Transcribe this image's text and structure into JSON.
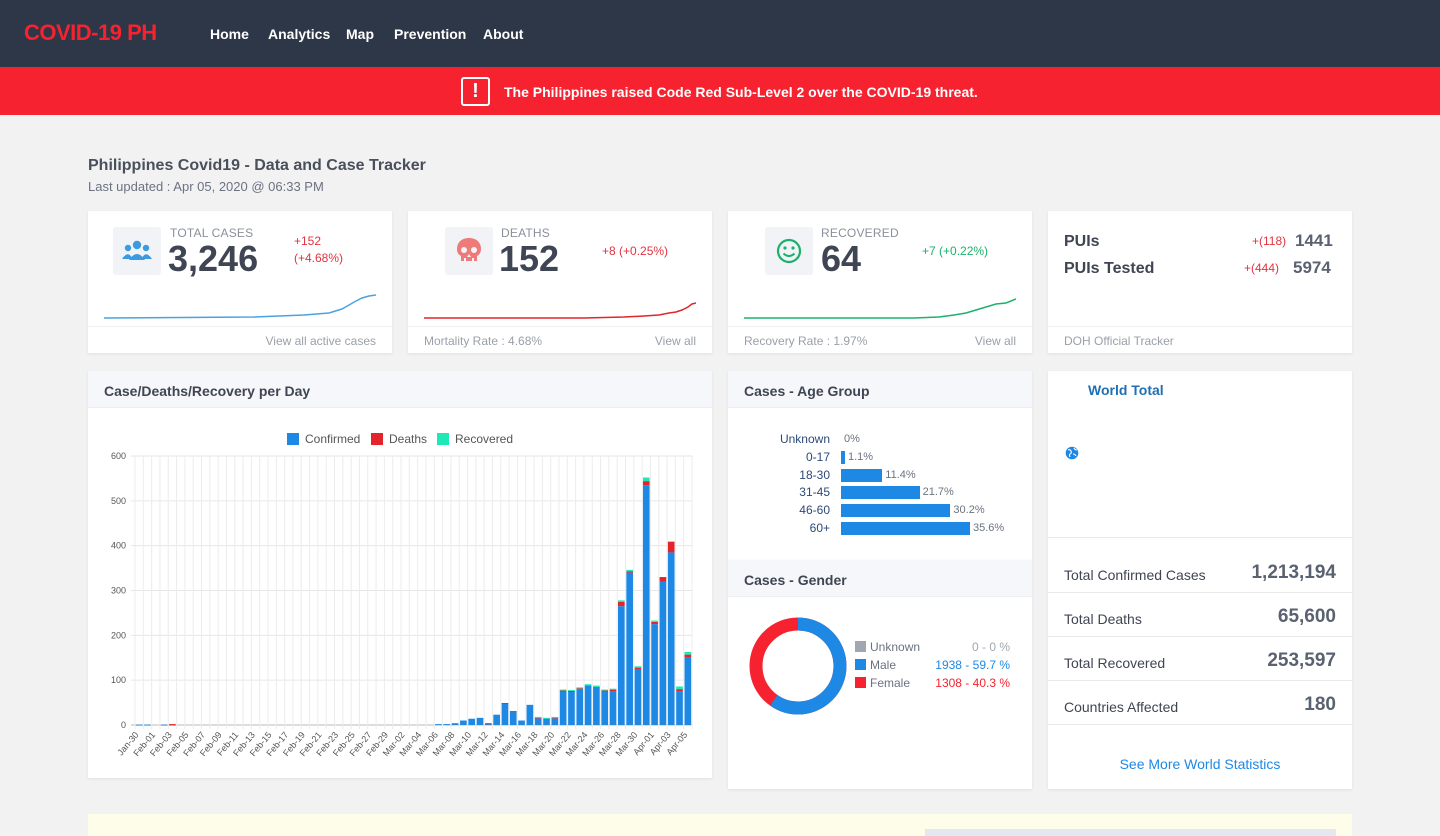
{
  "nav": {
    "brand": "COVID-19 PH",
    "links": [
      "Home",
      "Analytics",
      "Map",
      "Prevention",
      "About"
    ]
  },
  "alert": {
    "icon": "exclamation-icon",
    "text": "The Philippines raised Code Red Sub-Level 2 over the COVID-19 threat."
  },
  "header": {
    "title": "Philippines Covid19 - Data and Case Tracker",
    "updated": "Last updated : Apr 05, 2020 @ 06:33 PM"
  },
  "stats": {
    "total": {
      "label": "TOTAL CASES",
      "value": "3,246",
      "delta": "+152",
      "delta_pct": "(+4.68%)",
      "icon": "users-icon",
      "footer_right": "View all active cases",
      "color": "#4aa3e0"
    },
    "deaths": {
      "label": "DEATHS",
      "value": "152",
      "delta": "+8 (+0.25%)",
      "icon": "skull-icon",
      "footer_left": "Mortality Rate : 4.68%",
      "footer_right": "View all",
      "color": "#e3242b"
    },
    "recovered": {
      "label": "RECOVERED",
      "value": "64",
      "delta": "+7 (+0.22%)",
      "icon": "smile-icon",
      "footer_left": "Recovery Rate : 1.97%",
      "footer_right": "View all",
      "color": "#1ab26b"
    }
  },
  "puis": {
    "pui_label": "PUIs",
    "pui_delta": "+(118)",
    "pui_value": "1441",
    "tested_label": "PUIs Tested",
    "tested_delta": "+(444)",
    "tested_value": "5974",
    "footer": "DOH Official Tracker"
  },
  "daily": {
    "title": "Case/Deaths/Recovery per Day",
    "legend": [
      "Confirmed",
      "Deaths",
      "Recovered"
    ],
    "colors": [
      "#1e88e5",
      "#e3242b",
      "#1de9b6"
    ]
  },
  "chart_data": {
    "type": "bar",
    "stacked": true,
    "ylim": [
      0,
      600
    ],
    "yticks": [
      0,
      100,
      200,
      300,
      400,
      500,
      600
    ],
    "grid": true,
    "legend_position": "top",
    "categories": [
      "Jan-30",
      "Jan-31",
      "Feb-01",
      "Feb-02",
      "Feb-03",
      "Feb-04",
      "Feb-05",
      "Feb-06",
      "Feb-07",
      "Feb-08",
      "Feb-09",
      "Feb-10",
      "Feb-11",
      "Feb-12",
      "Feb-13",
      "Feb-14",
      "Feb-15",
      "Feb-16",
      "Feb-17",
      "Feb-18",
      "Feb-19",
      "Feb-20",
      "Feb-21",
      "Feb-22",
      "Feb-23",
      "Feb-24",
      "Feb-25",
      "Feb-26",
      "Feb-27",
      "Feb-28",
      "Feb-29",
      "Mar-01",
      "Mar-02",
      "Mar-03",
      "Mar-04",
      "Mar-05",
      "Mar-06",
      "Mar-07",
      "Mar-08",
      "Mar-09",
      "Mar-10",
      "Mar-11",
      "Mar-12",
      "Mar-13",
      "Mar-14",
      "Mar-15",
      "Mar-16",
      "Mar-17",
      "Mar-18",
      "Mar-19",
      "Mar-20",
      "Mar-21",
      "Mar-22",
      "Mar-23",
      "Mar-24",
      "Mar-25",
      "Mar-26",
      "Mar-27",
      "Mar-28",
      "Mar-29",
      "Mar-30",
      "Mar-31",
      "Apr-01",
      "Apr-02",
      "Apr-03",
      "Apr-04",
      "Apr-05"
    ],
    "tick_labels": [
      "Jan-30",
      "Feb-01",
      "Feb-03",
      "Feb-05",
      "Feb-07",
      "Feb-09",
      "Feb-11",
      "Feb-13",
      "Feb-15",
      "Feb-17",
      "Feb-19",
      "Feb-21",
      "Feb-23",
      "Feb-25",
      "Feb-27",
      "Feb-29",
      "Mar-02",
      "Mar-04",
      "Mar-06",
      "Mar-08",
      "Mar-10",
      "Mar-12",
      "Mar-14",
      "Mar-16",
      "Mar-18",
      "Mar-20",
      "Mar-22",
      "Mar-24",
      "Mar-26",
      "Mar-28",
      "Mar-30",
      "Apr-01",
      "Apr-03",
      "Apr-05"
    ],
    "series": [
      {
        "name": "Confirmed",
        "values": [
          1,
          1,
          0,
          1,
          1,
          0,
          0,
          0,
          0,
          0,
          0,
          0,
          0,
          0,
          0,
          0,
          0,
          0,
          0,
          0,
          0,
          0,
          0,
          0,
          0,
          0,
          0,
          0,
          0,
          0,
          0,
          0,
          0,
          0,
          0,
          0,
          2,
          2,
          4,
          10,
          14,
          16,
          3,
          23,
          48,
          30,
          10,
          45,
          15,
          15,
          15,
          75,
          75,
          80,
          88,
          85,
          75,
          75,
          265,
          340,
          125,
          535,
          225,
          320,
          385,
          75,
          150
        ]
      },
      {
        "name": "Deaths",
        "values": [
          0,
          0,
          0,
          0,
          1,
          0,
          0,
          0,
          0,
          0,
          0,
          0,
          0,
          0,
          0,
          0,
          0,
          0,
          0,
          0,
          0,
          0,
          0,
          0,
          0,
          0,
          0,
          0,
          0,
          0,
          0,
          0,
          0,
          0,
          0,
          0,
          0,
          0,
          0,
          0,
          0,
          0,
          1,
          0,
          1,
          1,
          0,
          0,
          2,
          0,
          2,
          2,
          1,
          2,
          0,
          0,
          2,
          4,
          10,
          3,
          3,
          9,
          5,
          10,
          24,
          5,
          7
        ]
      },
      {
        "name": "Recovered",
        "values": [
          0,
          0,
          0,
          0,
          0,
          0,
          0,
          0,
          0,
          0,
          0,
          0,
          0,
          0,
          0,
          0,
          0,
          0,
          0,
          0,
          0,
          0,
          0,
          0,
          0,
          0,
          0,
          0,
          0,
          0,
          0,
          0,
          0,
          0,
          0,
          0,
          0,
          0,
          0,
          0,
          0,
          0,
          0,
          0,
          0,
          0,
          0,
          0,
          1,
          1,
          1,
          2,
          2,
          2,
          3,
          3,
          2,
          2,
          3,
          3,
          3,
          8,
          3,
          0,
          0,
          6,
          6
        ]
      }
    ]
  },
  "age": {
    "title": "Cases - Age Group",
    "groups": [
      {
        "label": "Unknown",
        "value": 0,
        "text": "0%"
      },
      {
        "label": "0-17",
        "value": 1.1,
        "text": "1.1%"
      },
      {
        "label": "18-30",
        "value": 11.4,
        "text": "11.4%"
      },
      {
        "label": "31-45",
        "value": 21.7,
        "text": "21.7%"
      },
      {
        "label": "46-60",
        "value": 30.2,
        "text": "30.2%"
      },
      {
        "label": "60+",
        "value": 35.6,
        "text": "35.6%"
      }
    ]
  },
  "gender": {
    "title": "Cases - Gender",
    "items": [
      {
        "label": "Unknown",
        "value": "0 - 0 %",
        "color": "#a0a7b1",
        "count": 0
      },
      {
        "label": "Male",
        "value": "1938 - 59.7 %",
        "color": "#1e88e5",
        "count": 1938
      },
      {
        "label": "Female",
        "value": "1308 - 40.3 %",
        "color": "#f7222f",
        "count": 1308
      }
    ]
  },
  "world": {
    "title": "World Total",
    "icon": "globe-icon",
    "rows": [
      {
        "label": "Total Confirmed Cases",
        "value": "1,213,194"
      },
      {
        "label": "Total Deaths",
        "value": "65,600"
      },
      {
        "label": "Total Recovered",
        "value": "253,597"
      },
      {
        "label": "Countries Affected",
        "value": "180"
      }
    ],
    "link": "See More World Statistics"
  }
}
